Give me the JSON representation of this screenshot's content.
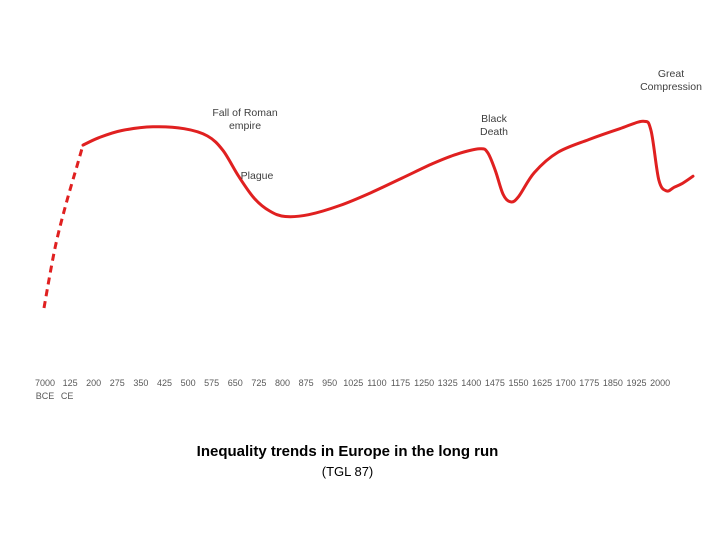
{
  "chart_data": {
    "type": "line",
    "title": "Inequality trends in Europe in the long run",
    "subtitle": "(TGL 87)",
    "xlabel": "",
    "ylabel": "",
    "x_ticks": [
      {
        "l1": "7000",
        "l2": "BCE"
      },
      {
        "l1": "125",
        "l2": "CE"
      },
      {
        "l1": "200",
        "l2": ""
      },
      {
        "l1": "275",
        "l2": ""
      },
      {
        "l1": "350",
        "l2": ""
      },
      {
        "l1": "425",
        "l2": ""
      },
      {
        "l1": "500",
        "l2": ""
      },
      {
        "l1": "575",
        "l2": ""
      },
      {
        "l1": "650",
        "l2": ""
      },
      {
        "l1": "725",
        "l2": ""
      },
      {
        "l1": "800",
        "l2": ""
      },
      {
        "l1": "875",
        "l2": ""
      },
      {
        "l1": "950",
        "l2": ""
      },
      {
        "l1": "1025",
        "l2": ""
      },
      {
        "l1": "1100",
        "l2": ""
      },
      {
        "l1": "1175",
        "l2": ""
      },
      {
        "l1": "1250",
        "l2": ""
      },
      {
        "l1": "1325",
        "l2": ""
      },
      {
        "l1": "1400",
        "l2": ""
      },
      {
        "l1": "1475",
        "l2": ""
      },
      {
        "l1": "1550",
        "l2": ""
      },
      {
        "l1": "1625",
        "l2": ""
      },
      {
        "l1": "1700",
        "l2": ""
      },
      {
        "l1": "1775",
        "l2": ""
      },
      {
        "l1": "1850",
        "l2": ""
      },
      {
        "l1": "1925",
        "l2": ""
      },
      {
        "l1": "2000",
        "l2": ""
      }
    ],
    "series": [
      {
        "color": "#e02020",
        "points": [
          {
            "x": -7000,
            "y": 0.0,
            "dashed": true
          },
          {
            "x": -5000,
            "y": 0.33,
            "dashed": true
          },
          {
            "x": -3000,
            "y": 0.57,
            "dashed": true
          },
          {
            "x": -1000,
            "y": 0.78,
            "dashed": true
          },
          {
            "x": 50,
            "y": 0.89,
            "dashed": true
          },
          {
            "x": 100,
            "y": 0.93,
            "dashed": false
          },
          {
            "x": 175,
            "y": 0.97,
            "dashed": false
          },
          {
            "x": 275,
            "y": 0.99,
            "dashed": false
          },
          {
            "x": 375,
            "y": 0.98,
            "dashed": false
          },
          {
            "x": 450,
            "y": 0.94,
            "dashed": false
          },
          {
            "x": 500,
            "y": 0.86,
            "dashed": false
          },
          {
            "x": 550,
            "y": 0.72,
            "dashed": false
          },
          {
            "x": 600,
            "y": 0.6,
            "dashed": false
          },
          {
            "x": 650,
            "y": 0.53,
            "dashed": false
          },
          {
            "x": 700,
            "y": 0.5,
            "dashed": false
          },
          {
            "x": 775,
            "y": 0.51,
            "dashed": false
          },
          {
            "x": 875,
            "y": 0.56,
            "dashed": false
          },
          {
            "x": 975,
            "y": 0.63,
            "dashed": false
          },
          {
            "x": 1075,
            "y": 0.71,
            "dashed": false
          },
          {
            "x": 1175,
            "y": 0.79,
            "dashed": false
          },
          {
            "x": 1250,
            "y": 0.84,
            "dashed": false
          },
          {
            "x": 1325,
            "y": 0.87,
            "dashed": false
          },
          {
            "x": 1350,
            "y": 0.85,
            "dashed": false
          },
          {
            "x": 1375,
            "y": 0.75,
            "dashed": false
          },
          {
            "x": 1400,
            "y": 0.62,
            "dashed": false
          },
          {
            "x": 1425,
            "y": 0.58,
            "dashed": false
          },
          {
            "x": 1450,
            "y": 0.61,
            "dashed": false
          },
          {
            "x": 1500,
            "y": 0.74,
            "dashed": false
          },
          {
            "x": 1575,
            "y": 0.85,
            "dashed": false
          },
          {
            "x": 1675,
            "y": 0.92,
            "dashed": false
          },
          {
            "x": 1775,
            "y": 0.98,
            "dashed": false
          },
          {
            "x": 1850,
            "y": 1.02,
            "dashed": false
          },
          {
            "x": 1875,
            "y": 0.97,
            "dashed": false
          },
          {
            "x": 1900,
            "y": 0.7,
            "dashed": false
          },
          {
            "x": 1925,
            "y": 0.64,
            "dashed": false
          },
          {
            "x": 1950,
            "y": 0.66,
            "dashed": false
          },
          {
            "x": 1975,
            "y": 0.68,
            "dashed": false
          },
          {
            "x": 2010,
            "y": 0.72,
            "dashed": false
          }
        ]
      }
    ],
    "annotations": [
      {
        "lines": [
          "Fall of Roman",
          "empire"
        ],
        "x": 500
      },
      {
        "lines": [
          "Plague"
        ],
        "x": 580
      },
      {
        "lines": [
          "Black",
          "Death"
        ],
        "x": 1350
      },
      {
        "lines": [
          "Great",
          "Compression"
        ],
        "x": 1850
      }
    ],
    "grid": false,
    "legend": "none"
  }
}
